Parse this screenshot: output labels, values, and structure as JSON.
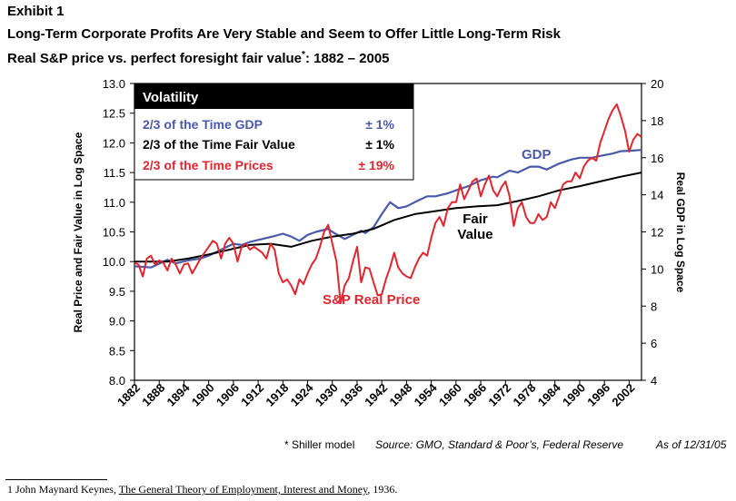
{
  "header": {
    "exhibit": "Exhibit 1",
    "title": "Long-Term Corporate Profits Are Very Stable and Seem to Offer Little Long-Term Risk",
    "subtitle_main": "Real S&P price vs. perfect foresight fair value",
    "subtitle_mark": "*",
    "subtitle_tail": ":  1882 – 2005"
  },
  "chart_data": {
    "type": "line",
    "x_range": [
      1882,
      2005
    ],
    "x_tick_labels": [
      "1882",
      "1888",
      "1894",
      "1900",
      "1906",
      "1912",
      "1918",
      "1924",
      "1930",
      "1936",
      "1942",
      "1948",
      "1954",
      "1960",
      "1966",
      "1972",
      "1978",
      "1984",
      "1990",
      "1996",
      "2002"
    ],
    "y_left": {
      "label": "Real Price and Fair Value in Log Space",
      "range": [
        8.0,
        13.0
      ],
      "tick_labels": [
        "8.0",
        "8.5",
        "9.0",
        "9.5",
        "10.0",
        "10.5",
        "11.0",
        "11.5",
        "12.0",
        "12.5",
        "13.0"
      ]
    },
    "y_right": {
      "label": "Real GDP in Log Space",
      "range": [
        4,
        20
      ],
      "tick_labels": [
        "4",
        "6",
        "8",
        "10",
        "12",
        "14",
        "16",
        "18",
        "20"
      ]
    },
    "series": [
      {
        "name": "GDP",
        "axis": "left",
        "color": "#4a5aa8",
        "x": [
          1882,
          1886,
          1890,
          1892,
          1895,
          1898,
          1900,
          1903,
          1906,
          1908,
          1910,
          1913,
          1916,
          1918,
          1920,
          1922,
          1924,
          1926,
          1929,
          1930,
          1932,
          1933,
          1935,
          1937,
          1938,
          1940,
          1942,
          1944,
          1946,
          1948,
          1950,
          1953,
          1955,
          1958,
          1960,
          1963,
          1966,
          1969,
          1970,
          1973,
          1975,
          1978,
          1980,
          1982,
          1985,
          1988,
          1990,
          1993,
          1995,
          1998,
          2000,
          2003,
          2005
        ],
        "values": [
          9.92,
          9.9,
          10.03,
          9.97,
          10.02,
          10.05,
          10.1,
          10.2,
          10.3,
          10.28,
          10.33,
          10.38,
          10.43,
          10.47,
          10.42,
          10.35,
          10.45,
          10.5,
          10.55,
          10.5,
          10.42,
          10.38,
          10.45,
          10.52,
          10.48,
          10.58,
          10.8,
          11.0,
          10.9,
          10.93,
          11.0,
          11.1,
          11.1,
          11.15,
          11.2,
          11.27,
          11.37,
          11.43,
          11.42,
          11.53,
          11.5,
          11.6,
          11.6,
          11.55,
          11.65,
          11.72,
          11.75,
          11.75,
          11.78,
          11.82,
          11.86,
          11.87,
          11.88
        ]
      },
      {
        "name": "Fair Value",
        "axis": "left",
        "color": "#000000",
        "x": [
          1882,
          1890,
          1895,
          1900,
          1905,
          1910,
          1915,
          1920,
          1925,
          1930,
          1935,
          1940,
          1945,
          1950,
          1955,
          1960,
          1965,
          1970,
          1975,
          1980,
          1985,
          1990,
          1995,
          2000,
          2005
        ],
        "values": [
          10.0,
          10.0,
          10.05,
          10.12,
          10.2,
          10.28,
          10.3,
          10.25,
          10.35,
          10.42,
          10.47,
          10.55,
          10.7,
          10.8,
          10.85,
          10.9,
          10.93,
          10.95,
          11.02,
          11.1,
          11.2,
          11.27,
          11.35,
          11.43,
          11.5
        ]
      },
      {
        "name": "S&P Real Price",
        "axis": "left",
        "color": "#e0262e",
        "x": [
          1882,
          1883,
          1884,
          1885,
          1886,
          1887,
          1888,
          1889,
          1890,
          1891,
          1892,
          1893,
          1894,
          1895,
          1896,
          1897,
          1898,
          1899,
          1900,
          1901,
          1902,
          1903,
          1904,
          1905,
          1906,
          1907,
          1908,
          1909,
          1910,
          1911,
          1912,
          1913,
          1914,
          1915,
          1916,
          1917,
          1918,
          1919,
          1920,
          1921,
          1922,
          1923,
          1924,
          1925,
          1926,
          1927,
          1928,
          1929,
          1930,
          1931,
          1932,
          1933,
          1934,
          1935,
          1936,
          1937,
          1938,
          1939,
          1940,
          1941,
          1942,
          1943,
          1944,
          1945,
          1946,
          1947,
          1948,
          1949,
          1950,
          1951,
          1952,
          1953,
          1954,
          1955,
          1956,
          1957,
          1958,
          1959,
          1960,
          1961,
          1962,
          1963,
          1964,
          1965,
          1966,
          1967,
          1968,
          1969,
          1970,
          1971,
          1972,
          1973,
          1974,
          1975,
          1976,
          1977,
          1978,
          1979,
          1980,
          1981,
          1982,
          1983,
          1984,
          1985,
          1986,
          1987,
          1988,
          1989,
          1990,
          1991,
          1992,
          1993,
          1994,
          1995,
          1996,
          1997,
          1998,
          1999,
          2000,
          2001,
          2002,
          2003,
          2004,
          2005
        ],
        "values": [
          9.98,
          9.95,
          9.75,
          10.05,
          10.1,
          9.95,
          10.02,
          9.98,
          9.85,
          10.05,
          9.95,
          9.8,
          9.95,
          9.97,
          9.8,
          9.92,
          10.05,
          10.15,
          10.25,
          10.35,
          10.3,
          10.05,
          10.3,
          10.4,
          10.3,
          10.0,
          10.25,
          10.3,
          10.2,
          10.25,
          10.2,
          10.15,
          10.05,
          10.3,
          10.2,
          9.8,
          9.65,
          9.7,
          9.6,
          9.45,
          9.7,
          9.62,
          9.8,
          9.95,
          10.05,
          10.25,
          10.5,
          10.62,
          10.3,
          10.0,
          9.3,
          9.6,
          9.72,
          10.0,
          10.25,
          9.65,
          9.9,
          9.88,
          9.65,
          9.43,
          9.45,
          9.7,
          9.9,
          10.15,
          9.9,
          9.8,
          9.75,
          9.72,
          9.9,
          10.05,
          10.15,
          10.1,
          10.4,
          10.65,
          10.75,
          10.6,
          10.9,
          11.0,
          11.0,
          11.3,
          11.05,
          11.2,
          11.35,
          11.4,
          11.1,
          11.3,
          11.45,
          11.2,
          11.1,
          11.25,
          11.35,
          11.1,
          10.6,
          10.9,
          11.0,
          10.75,
          10.65,
          10.65,
          10.8,
          10.7,
          10.75,
          11.0,
          10.9,
          11.1,
          11.3,
          11.35,
          11.35,
          11.5,
          11.4,
          11.6,
          11.7,
          11.75,
          11.7,
          12.0,
          12.2,
          12.4,
          12.55,
          12.65,
          12.45,
          12.2,
          11.85,
          12.05,
          12.15,
          12.1
        ]
      }
    ],
    "legend": {
      "title": "Volatility",
      "placement": "top-left",
      "rows": [
        {
          "label": "2/3 of the Time GDP",
          "value": "± 1%",
          "color": "#4a5aa8"
        },
        {
          "label": "2/3 of the Time Fair Value",
          "value": "± 1%",
          "color": "#000000"
        },
        {
          "label": "2/3 of the Time Prices",
          "value": "± 19%",
          "color": "#e0262e"
        }
      ]
    },
    "annotations": {
      "gdp": "GDP",
      "fair_line1": "Fair",
      "fair_line2": "Value",
      "price": "S&P Real Price"
    },
    "grid": false
  },
  "footer": {
    "note": "* Shiller model",
    "source": "Source:  GMO, Standard & Poor’s, Federal Reserve",
    "as_of": "As of 12/31/05"
  },
  "footnote": {
    "number": "1",
    "author": "John Maynard Keynes, ",
    "book": "The General Theory of Employment, Interest and Money",
    "year": ", 1936."
  }
}
